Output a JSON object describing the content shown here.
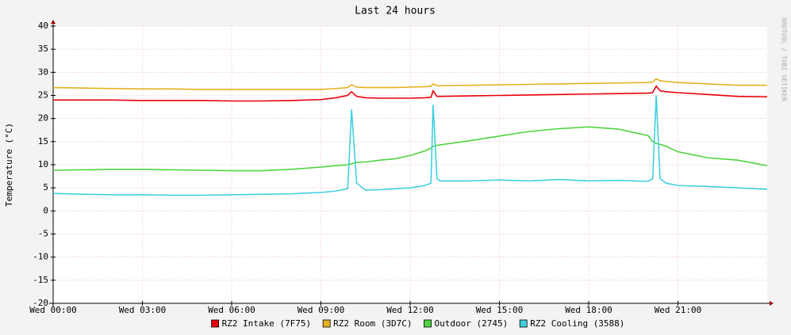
{
  "chart_data": {
    "type": "line",
    "title": "Last 24 hours",
    "y_label": "Temperature (°C)",
    "watermark": "RRDTOOL / TOBI OETIKER",
    "x": [
      0,
      1,
      2,
      3,
      4,
      5,
      6,
      7,
      8,
      9,
      9.5,
      9.9,
      10.03,
      10.2,
      10.5,
      11,
      11.5,
      12,
      12.5,
      12.7,
      12.77,
      12.9,
      13,
      14,
      15,
      16,
      17,
      18,
      19,
      20,
      20.15,
      20.27,
      20.4,
      20.6,
      21,
      22,
      23,
      24
    ],
    "xlim": [
      0,
      24
    ],
    "xticks": [
      {
        "value": 0,
        "label": "Wed 00:00"
      },
      {
        "value": 3,
        "label": "Wed 03:00"
      },
      {
        "value": 6,
        "label": "Wed 06:00"
      },
      {
        "value": 9,
        "label": "Wed 09:00"
      },
      {
        "value": 12,
        "label": "Wed 12:00"
      },
      {
        "value": 15,
        "label": "Wed 15:00"
      },
      {
        "value": 18,
        "label": "Wed 18:00"
      },
      {
        "value": 21,
        "label": "Wed 21:00"
      }
    ],
    "ylim": [
      -20,
      40
    ],
    "yticks": [
      -20,
      -15,
      -10,
      -5,
      0,
      5,
      10,
      15,
      20,
      25,
      30,
      35,
      40
    ],
    "grid": true,
    "series": [
      {
        "name": "RZ2 Intake (7F75)",
        "color": "#e8000b",
        "values": [
          24,
          24,
          24,
          23.9,
          23.9,
          23.9,
          23.8,
          23.8,
          23.9,
          24.1,
          24.5,
          25,
          25.8,
          24.8,
          24.5,
          24.4,
          24.4,
          24.4,
          24.5,
          24.6,
          26,
          24.8,
          24.8,
          24.9,
          25,
          25.1,
          25.2,
          25.3,
          25.4,
          25.5,
          25.6,
          27,
          26,
          25.8,
          25.6,
          25.2,
          24.8,
          24.7
        ]
      },
      {
        "name": "RZ2 Room (3D7C)",
        "color": "#e3b21e",
        "values": [
          26.7,
          26.6,
          26.5,
          26.4,
          26.4,
          26.3,
          26.3,
          26.3,
          26.3,
          26.3,
          26.5,
          26.7,
          27.3,
          26.8,
          26.7,
          26.7,
          26.7,
          26.8,
          26.9,
          27,
          27.5,
          27.1,
          27.1,
          27.2,
          27.3,
          27.4,
          27.5,
          27.6,
          27.7,
          27.8,
          27.9,
          28.6,
          28.2,
          28,
          27.8,
          27.5,
          27.2,
          27.2
        ]
      },
      {
        "name": "Outdoor (2745)",
        "color": "#4fd43f",
        "values": [
          8.8,
          8.9,
          9,
          9,
          8.9,
          8.8,
          8.7,
          8.7,
          9,
          9.5,
          9.8,
          10,
          10.2,
          10.5,
          10.6,
          11,
          11.3,
          12,
          13,
          13.6,
          14,
          14.2,
          14.3,
          15.2,
          16.2,
          17.2,
          17.8,
          18.2,
          17.7,
          16.3,
          15,
          14.6,
          14.4,
          14,
          12.8,
          11.5,
          11,
          9.8
        ]
      },
      {
        "name": "RZ2 Cooling (3588)",
        "color": "#3fd0e0",
        "values": [
          3.8,
          3.6,
          3.5,
          3.5,
          3.4,
          3.4,
          3.5,
          3.6,
          3.7,
          4,
          4.3,
          4.8,
          22,
          6,
          4.5,
          4.6,
          4.8,
          5,
          5.5,
          6,
          23,
          7,
          6.5,
          6.5,
          6.7,
          6.5,
          6.8,
          6.5,
          6.6,
          6.4,
          7,
          25,
          7,
          6,
          5.5,
          5.3,
          5,
          4.7
        ]
      }
    ]
  }
}
